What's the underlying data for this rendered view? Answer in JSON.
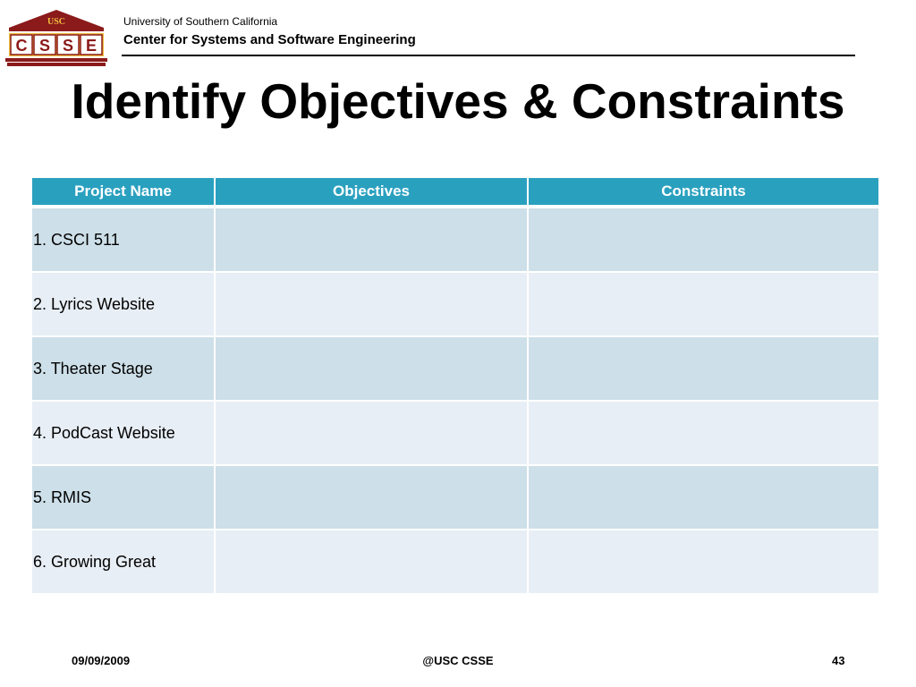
{
  "header": {
    "logo_text": "CSSE",
    "logo_usc": "USC",
    "university": "University of Southern California",
    "center": "Center for Systems and Software Engineering"
  },
  "title": "Identify Objectives & Constraints",
  "table": {
    "columns": [
      "Project Name",
      "Objectives",
      "Constraints"
    ],
    "rows": [
      {
        "name": "1. CSCI 511",
        "objectives": "",
        "constraints": ""
      },
      {
        "name": "2. Lyrics Website",
        "objectives": "",
        "constraints": ""
      },
      {
        "name": "3. Theater Stage",
        "objectives": "",
        "constraints": ""
      },
      {
        "name": "4. PodCast Website",
        "objectives": "",
        "constraints": ""
      },
      {
        "name": "5. RMIS",
        "objectives": "",
        "constraints": ""
      },
      {
        "name": "6. Growing Great",
        "objectives": "",
        "constraints": ""
      }
    ]
  },
  "footer": {
    "date": "09/09/2009",
    "center": "@USC CSSE",
    "page": "43"
  },
  "colors": {
    "header_row": "#2aa0bf",
    "row_dark": "#cddfe8",
    "row_light": "#e8eef5",
    "logo_maroon": "#8b1a1a",
    "logo_gold": "#f0c040"
  }
}
